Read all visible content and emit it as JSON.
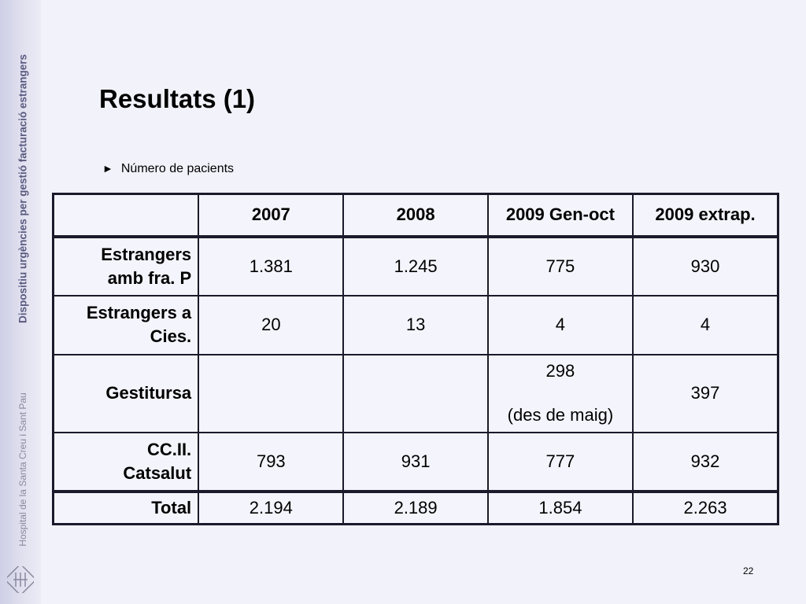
{
  "sidebar": {
    "title": "Dispositiu urgències per gestió facturació estrangers",
    "subtitle": "Hospital de la Santa Creu i Sant Pau"
  },
  "slide": {
    "title": "Resultats (1)",
    "bullet": "Número de pacients",
    "page_number": "22"
  },
  "table": {
    "headers": [
      "",
      "2007",
      "2008",
      "2009 Gen-oct",
      "2009 extrap."
    ],
    "rows": [
      {
        "label_line1": "Estrangers",
        "label_line2": "amb fra. P",
        "values": [
          "1.381",
          "1.245",
          "775",
          "930"
        ]
      },
      {
        "label_line1": "Estrangers a",
        "label_line2": "Cies.",
        "values": [
          "20",
          "13",
          "4",
          "4"
        ]
      },
      {
        "label": "Gestitursa",
        "values": [
          "",
          "",
          "298",
          "397"
        ],
        "note": "(des de maig)"
      },
      {
        "label_line1": "CC.II.",
        "label_line2": "Catsalut",
        "values": [
          "793",
          "931",
          "777",
          "932"
        ]
      },
      {
        "label": "Total",
        "values": [
          "2.194",
          "2.189",
          "1.854",
          "2.263"
        ]
      }
    ]
  }
}
